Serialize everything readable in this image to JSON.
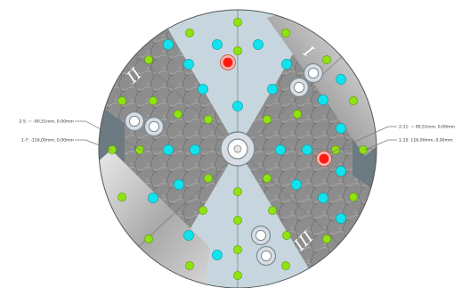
{
  "colors": {
    "background": "#ffffff",
    "texture_base": "#8a8a8a",
    "quadrant_light": "#c7d6de",
    "quadrant_dark": "#6c7a82",
    "dot_green": "#8fe310",
    "dot_cyan": "#11e3ee",
    "dot_red": "#ff1a10",
    "ring_fill": "#d7dde2",
    "ring_stroke": "#7b8a94",
    "leader_line": "#777777"
  },
  "sector_numerals": [
    {
      "id": "I",
      "text": "I"
    },
    {
      "id": "II",
      "text": "II"
    },
    {
      "id": "III",
      "text": "III"
    }
  ],
  "callouts": [
    {
      "id": "left-top",
      "text": "2-5: ~ -90,51mm, 0,00mm"
    },
    {
      "id": "left-bottom",
      "text": "1-7: -116,00mm, 0,00mm"
    },
    {
      "id": "right-top",
      "text": "2-11: ~ 90,51mm, 0,00mm"
    },
    {
      "id": "right-bottom",
      "text": "1-15: 116,00mm, 0,00mm"
    }
  ],
  "icons": [
    "wafer-disc",
    "ring-marker-icon",
    "dot-marker-icon"
  ]
}
